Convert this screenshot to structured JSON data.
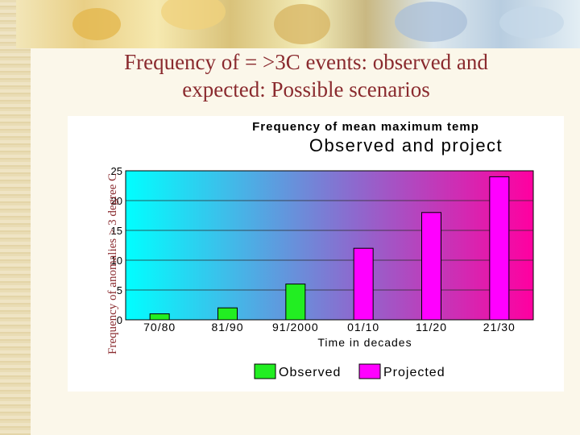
{
  "slide": {
    "title_line1": "Frequency of = >3C events: observed and",
    "title_line2": "expected: Possible scenarios"
  },
  "chart_data": {
    "type": "bar",
    "title_line1": "Frequency of mean maximum temp",
    "title_line2": "Observed and project",
    "xlabel": "Time in decades",
    "ylabel": "Frequency of anomalies > 3 degree C",
    "categories": [
      "70/80",
      "81/90",
      "91/2000",
      "01/10",
      "11/20",
      "21/30"
    ],
    "series": [
      {
        "name": "Observed",
        "color": "#22ee22",
        "values": [
          1,
          2,
          6,
          null,
          null,
          null
        ]
      },
      {
        "name": "Projected",
        "color": "#ff00ff",
        "values": [
          null,
          null,
          null,
          12,
          18,
          24
        ]
      }
    ],
    "ylim": [
      0,
      25
    ],
    "yticks": [
      0,
      5,
      10,
      15,
      20,
      25
    ],
    "ytick_labels": [
      "0",
      "5",
      "10",
      "15",
      "20",
      "25"
    ],
    "grid": true,
    "legend_position": "bottom",
    "plot_background": "gradient cyan-to-magenta"
  }
}
